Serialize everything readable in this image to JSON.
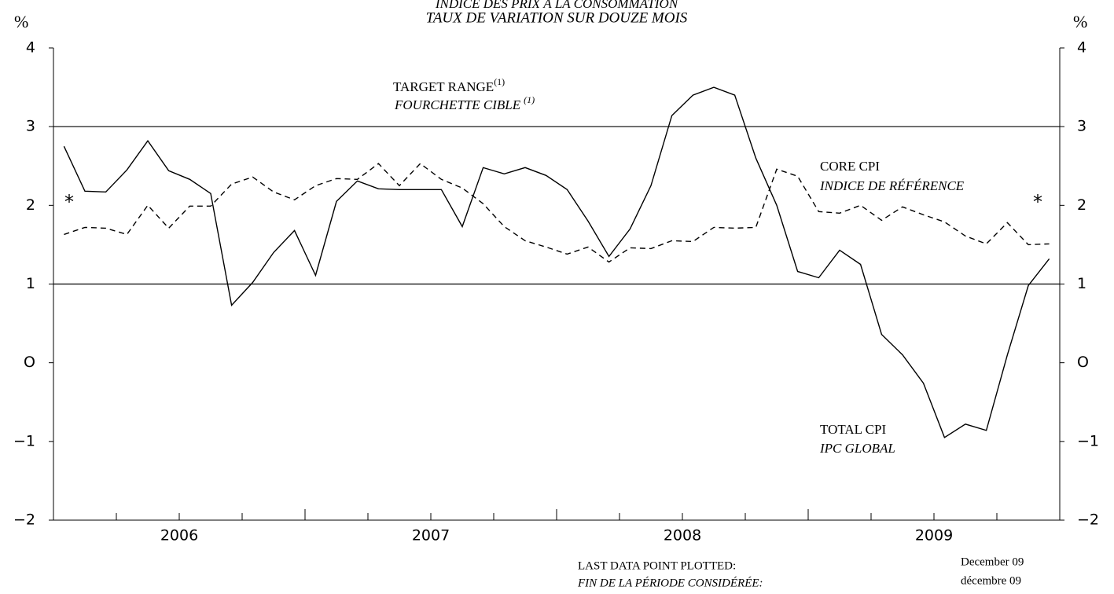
{
  "chart_data": {
    "type": "line",
    "title": "INDICE DES PRIX À LA CONSOMMATION",
    "subtitle": "TAUX DE VARIATION SUR DOUZE MOIS",
    "y_unit": "%",
    "x": [
      2006.042,
      2006.125,
      2006.208,
      2006.292,
      2006.375,
      2006.458,
      2006.542,
      2006.625,
      2006.708,
      2006.792,
      2006.875,
      2006.958,
      2007.042,
      2007.125,
      2007.208,
      2007.292,
      2007.375,
      2007.458,
      2007.542,
      2007.625,
      2007.708,
      2007.792,
      2007.875,
      2007.958,
      2008.042,
      2008.125,
      2008.208,
      2008.292,
      2008.375,
      2008.458,
      2008.542,
      2008.625,
      2008.708,
      2008.792,
      2008.875,
      2008.958,
      2009.042,
      2009.125,
      2009.208,
      2009.292,
      2009.375,
      2009.458,
      2009.542,
      2009.625,
      2009.708,
      2009.792,
      2009.875,
      2009.958
    ],
    "xlim": [
      2006,
      2010
    ],
    "xticks": [
      2006.25,
      2006.5,
      2006.75,
      2007,
      2007.25,
      2007.5,
      2007.75,
      2008,
      2008.25,
      2008.5,
      2008.75,
      2009,
      2009.25,
      2009.5,
      2009.75
    ],
    "year_labels": [
      {
        "value": 2006.5,
        "label": "2006"
      },
      {
        "value": 2007.5,
        "label": "2007"
      },
      {
        "value": 2008.5,
        "label": "2008"
      },
      {
        "value": 2009.5,
        "label": "2009"
      }
    ],
    "ylim": [
      -2,
      4
    ],
    "yticks": [
      {
        "value": -2,
        "label": "−2"
      },
      {
        "value": -1,
        "label": "−1"
      },
      {
        "value": 0,
        "label": "O"
      },
      1,
      2,
      3,
      4
    ],
    "target_range": [
      1,
      3
    ],
    "target_label": {
      "en": "TARGET RANGE",
      "fr": "FOURCHETTE CIBLE",
      "note": "(1)"
    },
    "footnote_marker": "*",
    "series": [
      {
        "name": "TOTAL CPI",
        "name_fr": "IPC GLOBAL",
        "color": "#000000",
        "dash": false,
        "values": [
          2.75,
          2.18,
          2.17,
          2.45,
          2.82,
          2.44,
          2.33,
          2.15,
          0.73,
          1.02,
          1.4,
          1.68,
          1.11,
          2.05,
          2.31,
          2.21,
          2.2,
          2.2,
          2.2,
          1.73,
          2.48,
          2.4,
          2.48,
          2.38,
          2.2,
          1.8,
          1.35,
          1.7,
          2.25,
          3.14,
          3.4,
          3.5,
          3.4,
          2.6,
          2.0,
          1.16,
          1.08,
          1.43,
          1.25,
          0.36,
          0.1,
          -0.26,
          -0.95,
          -0.78,
          -0.86,
          0.1,
          0.98,
          1.32
        ]
      },
      {
        "name": "CORE CPI",
        "name_fr": "INDICE DE RÉFÉRENCE",
        "color": "#000000",
        "dash": true,
        "values": [
          1.63,
          1.72,
          1.71,
          1.63,
          2.0,
          1.71,
          1.99,
          1.99,
          2.27,
          2.36,
          2.17,
          2.07,
          2.25,
          2.34,
          2.33,
          2.53,
          2.25,
          2.53,
          2.33,
          2.22,
          2.02,
          1.73,
          1.55,
          1.47,
          1.38,
          1.47,
          1.28,
          1.46,
          1.45,
          1.55,
          1.54,
          1.72,
          1.71,
          1.72,
          2.46,
          2.37,
          1.92,
          1.9,
          2.0,
          1.81,
          1.98,
          1.88,
          1.79,
          1.61,
          1.51,
          1.78,
          1.5,
          1.51
        ]
      }
    ],
    "footer": {
      "label_en": "LAST DATA POINT PLOTTED:",
      "label_fr": "FIN DE LA PÉRIODE CONSIDÉRÉE:",
      "date_en": "December 09",
      "date_fr": "décembre 09"
    }
  }
}
